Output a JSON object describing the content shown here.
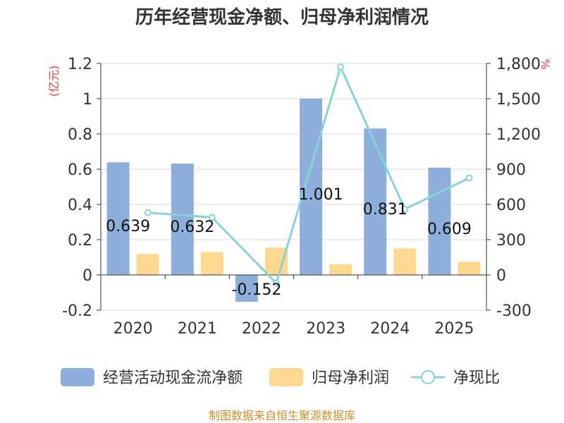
{
  "chart_data": {
    "type": "bar",
    "title": "历年经营现金净额、归母净利润情况",
    "categories": [
      "2020",
      "2021",
      "2022",
      "2023",
      "2024",
      "2025"
    ],
    "series": [
      {
        "name": "经营活动现金流净额",
        "kind": "bar",
        "axis": "left",
        "color": "#8eaedc",
        "values": [
          0.639,
          0.632,
          -0.152,
          1.001,
          0.831,
          0.609
        ],
        "labels": [
          "0.639",
          "0.632",
          "-0.152",
          "1.001",
          "0.831",
          "0.609"
        ]
      },
      {
        "name": "归母净利润",
        "kind": "bar",
        "axis": "left",
        "color": "#fdd891",
        "values": [
          0.12,
          0.13,
          0.155,
          0.06,
          0.15,
          0.075
        ]
      },
      {
        "name": "净现比",
        "kind": "line",
        "axis": "right",
        "color": "#88d3d8",
        "values": [
          530,
          490,
          -70,
          1770,
          560,
          825
        ]
      }
    ],
    "left_axis": {
      "unit": "(亿元)",
      "min": -0.2,
      "max": 1.2,
      "ticks": [
        "-0.2",
        "0",
        "0.2",
        "0.4",
        "0.6",
        "0.8",
        "1",
        "1.2"
      ]
    },
    "right_axis": {
      "unit": "%",
      "min": -300,
      "max": 1800,
      "ticks": [
        "-300",
        "0",
        "300",
        "600",
        "900",
        "1,200",
        "1,500",
        "1,800"
      ]
    },
    "grid": true,
    "legend_position": "bottom"
  },
  "source": "制图数据来自恒生聚源数据库"
}
